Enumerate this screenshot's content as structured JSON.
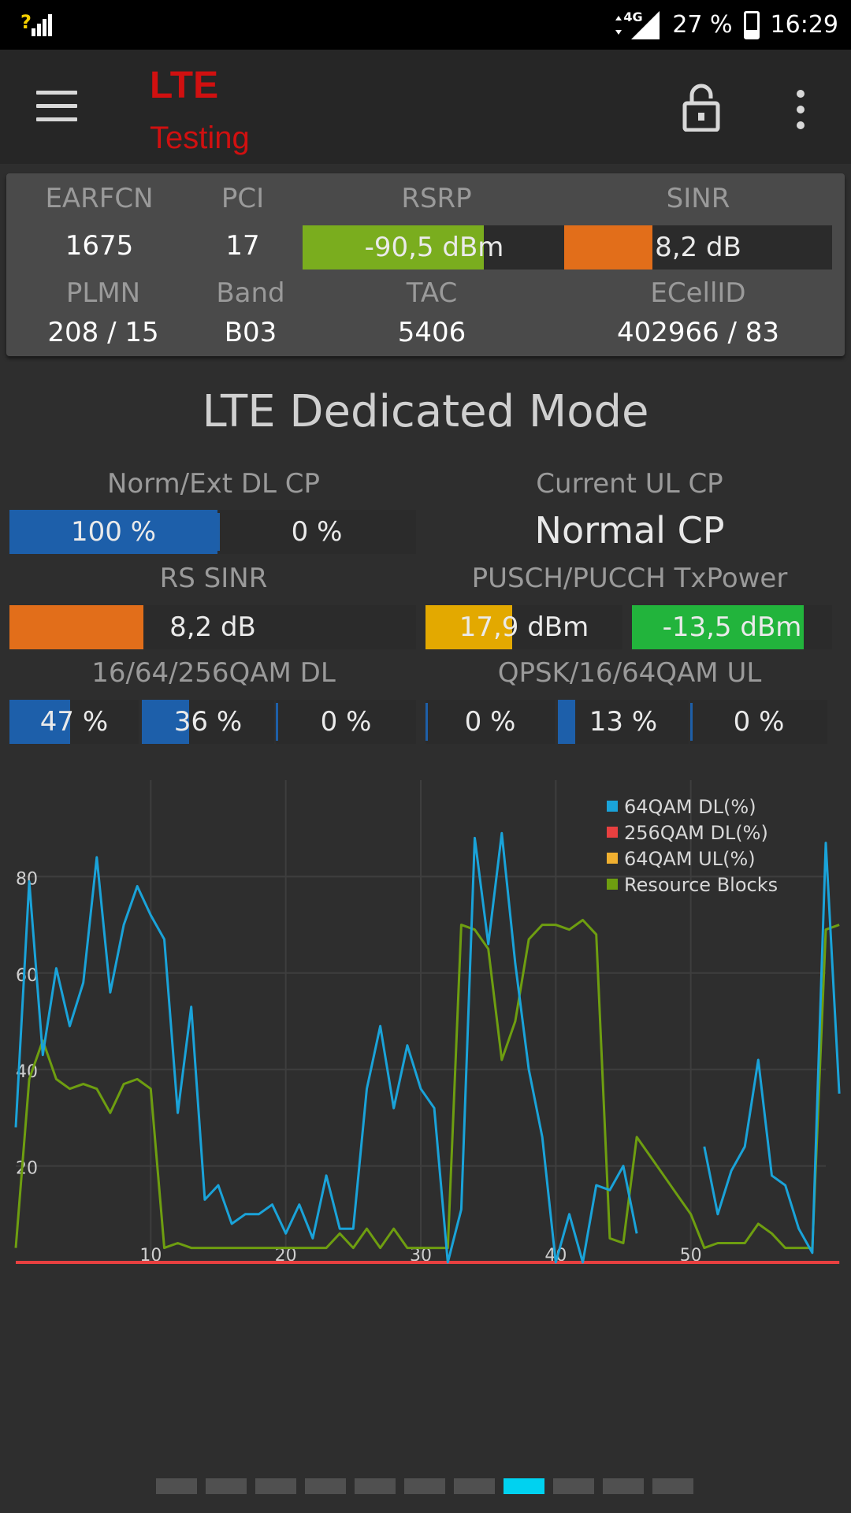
{
  "status_bar": {
    "left_icon": "signal-unknown-icon",
    "network": "4G",
    "battery": "27 %",
    "battery_level": 0.27,
    "time": "16:29"
  },
  "toolbar": {
    "title": "LTE",
    "subtitle": "Testing",
    "menu_icon": "hamburger-icon",
    "lock_icon": "lock-icon",
    "more_icon": "more-vert-icon"
  },
  "cell": {
    "earfcn_label": "EARFCN",
    "earfcn": "1675",
    "pci_label": "PCI",
    "pci": "17",
    "rsrp_label": "RSRP",
    "rsrp": "-90,5 dBm",
    "rsrp_level": 0.69,
    "sinr_label": "SINR",
    "sinr": "8,2 dB",
    "sinr_level": 0.33,
    "plmn_label": "PLMN",
    "plmn": "208 / 15",
    "band_label": "Band",
    "band": "B03",
    "tac_label": "TAC",
    "tac": "5406",
    "ecellid_label": "ECellID",
    "ecellid": "402966 / 83"
  },
  "dedicated": {
    "title": "LTE Dedicated Mode",
    "dl_cp_label": "Norm/Ext DL CP",
    "dl_cp_norm": "100 %",
    "dl_cp_norm_level": 1.0,
    "dl_cp_ext": "0 %",
    "dl_cp_ext_level": 0,
    "ul_cp_label": "Current UL CP",
    "ul_cp": "Normal CP",
    "rs_sinr_label": "RS SINR",
    "rs_sinr": "8,2 dB",
    "rs_sinr_level": 0.33,
    "txpower_label": "PUSCH/PUCCH TxPower",
    "pusch": "17,9 dBm",
    "pusch_level": 0.44,
    "pucch": "-13,5 dBm",
    "pucch_level": 0.86,
    "qam_dl_label": "16/64/256QAM DL",
    "qam_dl_16": "47 %",
    "qam_dl_16_level": 0.47,
    "qam_dl_64": "36 %",
    "qam_dl_64_level": 0.36,
    "qam_dl_256": "0 %",
    "qam_dl_256_level": 0,
    "qam_ul_label": "QPSK/16/64QAM UL",
    "qam_ul_qpsk": "0 %",
    "qam_ul_qpsk_level": 0,
    "qam_ul_16": "13 %",
    "qam_ul_16_level": 0.13,
    "qam_ul_64": "0 %",
    "qam_ul_64_level": 0
  },
  "colors": {
    "blue": "#1d5faa",
    "green": "#7aad1e",
    "orange": "#e26e1a",
    "yellow": "#e3a900",
    "bright_green": "#22b43c",
    "pager_active": "#00d2f0"
  },
  "pager": {
    "count": 11,
    "active_index": 7
  },
  "chart_data": {
    "type": "line",
    "xlim": [
      0,
      60
    ],
    "ylim": [
      0,
      100
    ],
    "x_ticks": [
      "10",
      "20",
      "30",
      "40",
      "50"
    ],
    "y_ticks": [
      "20",
      "40",
      "60",
      "80"
    ],
    "grid": true,
    "legend_position": "top-right",
    "series": [
      {
        "name": "64QAM DL(%)",
        "color": "#1aa3d9",
        "values": [
          28,
          79,
          43,
          61,
          49,
          58,
          84,
          56,
          70,
          78,
          72,
          67,
          31,
          53,
          13,
          16,
          8,
          10,
          10,
          12,
          6,
          12,
          5,
          18,
          7,
          7,
          36,
          49,
          32,
          45,
          36,
          32,
          0,
          11,
          88,
          66,
          89,
          62,
          40,
          26,
          0,
          10,
          0,
          16,
          15,
          20,
          6,
          null,
          null,
          null,
          null,
          24,
          10,
          19,
          24,
          42,
          18,
          16,
          7,
          2,
          87,
          35
        ]
      },
      {
        "name": "256QAM DL(%)",
        "color": "#e84040",
        "values": [
          0,
          0,
          0,
          0,
          0,
          0,
          0,
          0,
          0,
          0,
          0,
          0,
          0,
          0,
          0,
          0,
          0,
          0,
          0,
          0,
          0,
          0,
          0,
          0,
          0,
          0,
          0,
          0,
          0,
          0,
          0,
          0,
          0,
          0,
          0,
          0,
          0,
          0,
          0,
          0,
          0,
          0,
          0,
          0,
          0,
          0,
          0,
          0,
          0,
          0,
          0,
          0,
          0,
          0,
          0,
          0,
          0,
          0,
          0,
          0,
          0,
          0
        ]
      },
      {
        "name": "64QAM UL(%)",
        "color": "#f0b030",
        "values": [
          0,
          0,
          0,
          0,
          0,
          0,
          0,
          0,
          0,
          0,
          0,
          0,
          0,
          0,
          0,
          0,
          0,
          0,
          0,
          0,
          0,
          0,
          0,
          0,
          0,
          0,
          0,
          0,
          0,
          0,
          0,
          0,
          0,
          0,
          0,
          0,
          0,
          0,
          0,
          0,
          0,
          0,
          0,
          0,
          0,
          0,
          0,
          0,
          0,
          0,
          0,
          0,
          0,
          0,
          0,
          0,
          0,
          0,
          0,
          0,
          0,
          0
        ]
      },
      {
        "name": "Resource Blocks",
        "color": "#6e9e10",
        "values": [
          3,
          38,
          46,
          38,
          36,
          37,
          36,
          31,
          37,
          38,
          36,
          3,
          4,
          3,
          3,
          3,
          3,
          3,
          3,
          3,
          3,
          3,
          3,
          3,
          6,
          3,
          7,
          3,
          7,
          3,
          3,
          3,
          3,
          70,
          69,
          65,
          42,
          50,
          67,
          70,
          70,
          69,
          71,
          68,
          5,
          4,
          26,
          22,
          18,
          14,
          10,
          3,
          4,
          4,
          4,
          8,
          6,
          3,
          3,
          3,
          69,
          70
        ]
      }
    ]
  }
}
